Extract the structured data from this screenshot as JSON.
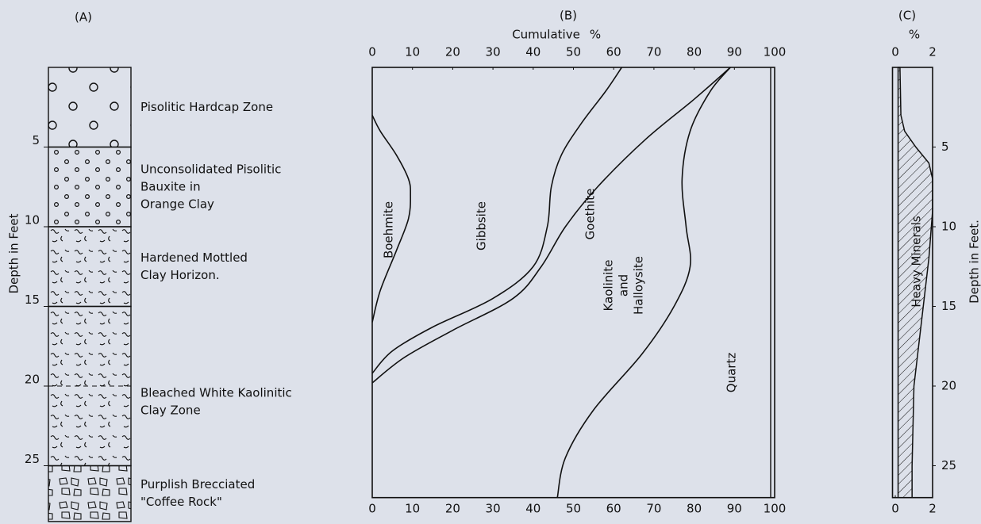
{
  "chart_data": [
    {
      "type": "column",
      "title": "(A)",
      "ylabel": "Depth in Feet",
      "ylim": [
        0,
        28.5
      ],
      "yticks": [
        5,
        10,
        15,
        20,
        25
      ],
      "layers": [
        {
          "lines": [
            "Pisolitic Hardcap Zone"
          ],
          "top": 0,
          "bottom": 5
        },
        {
          "lines": [
            "Unconsolidated Pisolitic",
            "Bauxite in",
            "Orange Clay"
          ],
          "top": 5,
          "bottom": 10
        },
        {
          "lines": [
            "Hardened Mottled",
            "Clay Horizon."
          ],
          "top": 10,
          "bottom": 15
        },
        {
          "lines": [
            "Bleached White Kaolinitic",
            "Clay Zone"
          ],
          "top": 15,
          "bottom": 25
        },
        {
          "lines": [
            "Purplish Brecciated",
            "\"Coffee Rock\""
          ],
          "top": 25,
          "bottom": 28.5
        }
      ]
    },
    {
      "type": "line",
      "title": "(B)",
      "xlabel": "Cumulative",
      "xunit": "%",
      "xlim": [
        0,
        100
      ],
      "xticks": [
        0,
        10,
        20,
        30,
        40,
        50,
        60,
        70,
        80,
        90,
        100
      ],
      "ylim": [
        0,
        27
      ],
      "curves": [
        {
          "x": [
            0,
            2,
            6,
            9,
            9.5,
            9,
            6,
            2,
            0
          ],
          "y": [
            3,
            4,
            5.5,
            7,
            8,
            9.5,
            11.5,
            14,
            16
          ]
        },
        {
          "x": [
            62,
            58,
            52,
            47,
            44.5,
            43.5,
            40,
            30,
            15,
            5,
            0
          ],
          "y": [
            0,
            1.5,
            3.5,
            5.5,
            7.5,
            10,
            12.5,
            14.5,
            16.3,
            17.8,
            19.2
          ]
        },
        {
          "x": [
            89,
            80,
            68,
            56,
            48,
            42,
            35,
            20,
            8,
            0
          ],
          "y": [
            0,
            2,
            4.5,
            7.5,
            10,
            12.5,
            14.5,
            16.5,
            18.2,
            19.8
          ]
        },
        {
          "x": [
            89,
            84,
            79,
            77,
            78,
            79,
            75,
            67,
            55,
            48,
            46
          ],
          "y": [
            0,
            1.5,
            4,
            7,
            10,
            12.5,
            15,
            18,
            21.5,
            24.5,
            27
          ]
        }
      ],
      "annotations": [
        [
          "Boehmite"
        ],
        [
          "Gibbsite"
        ],
        [
          "Goethite"
        ],
        [
          "Kaolinite",
          "and",
          "Halloysite"
        ],
        [
          "Quartz"
        ]
      ]
    },
    {
      "type": "area",
      "title": "(C)",
      "xunit": "%",
      "ylabel": "Depth in Feet.",
      "xlim": [
        -0.15,
        2
      ],
      "xticks": [
        0,
        2
      ],
      "ylim": [
        0,
        27
      ],
      "yticks": [
        5,
        10,
        15,
        20,
        25
      ],
      "label": "Heavy Minerals",
      "area": {
        "depth": [
          0,
          3,
          4,
          5,
          6,
          7,
          9,
          12,
          15,
          18,
          20,
          25,
          27
        ],
        "left": [
          0.15,
          0.15,
          0.15,
          0.15,
          0.15,
          0.15,
          0.15,
          0.15,
          0.15,
          0.15,
          0.15,
          0.15,
          0.15
        ],
        "right": [
          0.25,
          0.3,
          0.5,
          1.1,
          1.8,
          2,
          2,
          1.8,
          1.5,
          1.2,
          1,
          0.9,
          0.9
        ]
      }
    }
  ]
}
